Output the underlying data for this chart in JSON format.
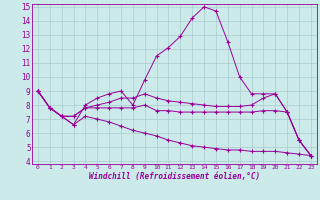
{
  "x": [
    0,
    1,
    2,
    3,
    4,
    5,
    6,
    7,
    8,
    9,
    10,
    11,
    12,
    13,
    14,
    15,
    16,
    17,
    18,
    19,
    20,
    21,
    22,
    23
  ],
  "line1": [
    9.0,
    7.8,
    7.2,
    6.6,
    8.0,
    8.5,
    8.8,
    9.0,
    8.0,
    9.8,
    11.5,
    12.1,
    12.9,
    14.2,
    15.0,
    14.7,
    12.5,
    10.0,
    8.8,
    8.8,
    8.8,
    7.5,
    5.5,
    4.4
  ],
  "line2": [
    9.0,
    7.8,
    7.2,
    7.2,
    7.8,
    8.0,
    8.2,
    8.5,
    8.5,
    8.8,
    8.5,
    8.3,
    8.2,
    8.1,
    8.0,
    7.9,
    7.9,
    7.9,
    8.0,
    8.5,
    8.8,
    7.5,
    5.5,
    4.4
  ],
  "line3": [
    9.0,
    7.8,
    7.2,
    7.2,
    7.8,
    7.8,
    7.8,
    7.8,
    7.8,
    8.0,
    7.6,
    7.6,
    7.5,
    7.5,
    7.5,
    7.5,
    7.5,
    7.5,
    7.5,
    7.6,
    7.6,
    7.5,
    5.5,
    4.4
  ],
  "line4": [
    9.0,
    7.8,
    7.2,
    6.6,
    7.2,
    7.0,
    6.8,
    6.5,
    6.2,
    6.0,
    5.8,
    5.5,
    5.3,
    5.1,
    5.0,
    4.9,
    4.8,
    4.8,
    4.7,
    4.7,
    4.7,
    4.6,
    4.5,
    4.4
  ],
  "line_color": "#990099",
  "bg_color": "#cceaea",
  "grid_color": "#aacccc",
  "xlabel": "Windchill (Refroidissement éolien,°C)",
  "ylim": [
    4,
    15
  ],
  "xlim": [
    0,
    23
  ],
  "yticks": [
    4,
    5,
    6,
    7,
    8,
    9,
    10,
    11,
    12,
    13,
    14,
    15
  ],
  "xticks": [
    0,
    1,
    2,
    3,
    4,
    5,
    6,
    7,
    8,
    9,
    10,
    11,
    12,
    13,
    14,
    15,
    16,
    17,
    18,
    19,
    20,
    21,
    22,
    23
  ]
}
